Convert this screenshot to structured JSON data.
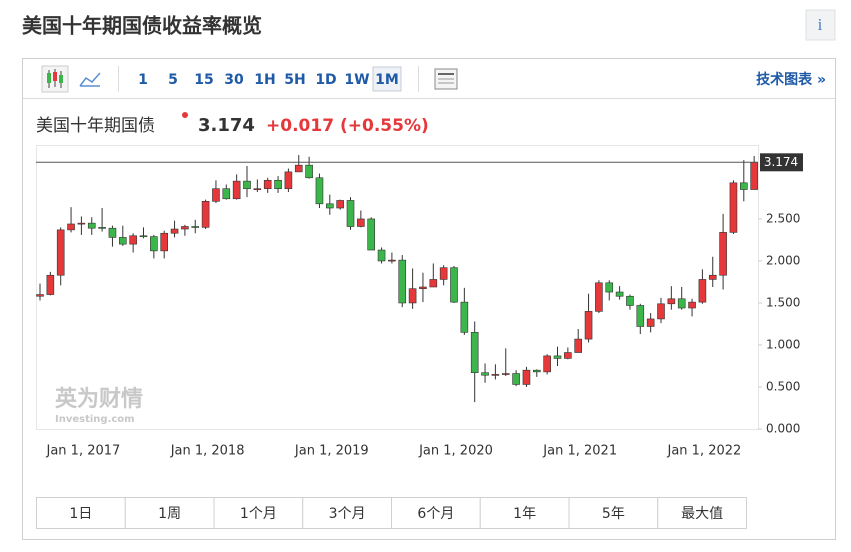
{
  "header": {
    "title": "美国十年期国债收益率概览",
    "info": "i"
  },
  "toolbar": {
    "intervals": [
      "1",
      "5",
      "15",
      "30",
      "1H",
      "5H",
      "1D",
      "1W",
      "1M"
    ],
    "selected": 8,
    "link": "技术图表 »"
  },
  "quote": {
    "name": "美国十年期国债",
    "change": "+0.017",
    "change_pct": "(+0.55%)"
  },
  "chart_data": {
    "type": "candlestick",
    "categories": [
      null,
      null,
      null,
      null,
      "Jan 1, 2017",
      null,
      null,
      null,
      null,
      null,
      null,
      null,
      null,
      null,
      null,
      null,
      "Jan 1, 2018",
      null,
      null,
      null,
      null,
      null,
      null,
      null,
      null,
      null,
      null,
      null,
      "Jan 1, 2019",
      null,
      null,
      null,
      null,
      null,
      null,
      null,
      null,
      null,
      null,
      null,
      "Jan 1, 2020",
      null,
      null,
      null,
      null,
      null,
      null,
      null,
      null,
      null,
      null,
      null,
      "Jan 1, 2021",
      null,
      null,
      null,
      null,
      null,
      null,
      null,
      null,
      null,
      null,
      null,
      "Jan 1, 2022",
      null,
      null,
      null,
      null,
      null
    ],
    "open": [
      1.58,
      1.6,
      1.83,
      2.37,
      2.44,
      2.45,
      2.4,
      2.39,
      2.28,
      2.2,
      2.3,
      2.29,
      2.12,
      2.33,
      2.38,
      2.41,
      2.4,
      2.71,
      2.86,
      2.74,
      2.95,
      2.86,
      2.86,
      2.96,
      2.86,
      3.06,
      3.14,
      2.99,
      2.68,
      2.63,
      2.72,
      2.41,
      2.5,
      2.13,
      2.0,
      2.01,
      1.5,
      1.67,
      1.69,
      1.78,
      1.92,
      1.51,
      1.15,
      0.67,
      0.64,
      0.65,
      0.66,
      0.53,
      0.7,
      0.68,
      0.87,
      0.84,
      0.91,
      1.07,
      1.4,
      1.74,
      1.63,
      1.58,
      1.47,
      1.22,
      1.31,
      1.49,
      1.55,
      1.44,
      1.51,
      1.78,
      1.83,
      2.34,
      2.93,
      2.85
    ],
    "high": [
      1.73,
      1.87,
      2.4,
      2.64,
      2.53,
      2.52,
      2.63,
      2.42,
      2.42,
      2.33,
      2.4,
      2.31,
      2.36,
      2.48,
      2.43,
      2.49,
      2.73,
      2.96,
      2.91,
      3.03,
      3.13,
      2.97,
      2.99,
      3.01,
      3.1,
      3.26,
      3.24,
      3.04,
      2.79,
      2.73,
      2.76,
      2.6,
      2.52,
      2.16,
      2.1,
      2.07,
      1.91,
      1.86,
      1.97,
      1.95,
      1.94,
      1.68,
      1.28,
      0.78,
      0.77,
      0.96,
      0.7,
      0.74,
      0.71,
      0.89,
      0.98,
      0.97,
      1.19,
      1.61,
      1.77,
      1.77,
      1.7,
      1.6,
      1.49,
      1.38,
      1.56,
      1.7,
      1.69,
      1.55,
      1.9,
      2.05,
      2.56,
      2.96,
      3.2,
      3.25
    ],
    "low": [
      1.53,
      1.59,
      1.71,
      2.34,
      2.31,
      2.31,
      2.35,
      2.17,
      2.18,
      2.1,
      2.27,
      2.03,
      2.03,
      2.28,
      2.3,
      2.33,
      2.38,
      2.69,
      2.73,
      2.73,
      2.76,
      2.82,
      2.81,
      2.81,
      2.82,
      3.06,
      2.98,
      2.63,
      2.55,
      2.61,
      2.37,
      2.4,
      2.13,
      1.97,
      1.97,
      1.45,
      1.43,
      1.51,
      1.69,
      1.71,
      1.5,
      1.12,
      0.32,
      0.55,
      0.59,
      0.63,
      0.51,
      0.5,
      0.62,
      0.65,
      0.75,
      0.83,
      0.91,
      1.03,
      1.38,
      1.53,
      1.54,
      1.42,
      1.13,
      1.15,
      1.26,
      1.42,
      1.42,
      1.34,
      1.49,
      1.69,
      1.66,
      2.32,
      2.71,
      2.85
    ],
    "close": [
      1.6,
      1.83,
      2.37,
      2.44,
      2.45,
      2.39,
      2.39,
      2.28,
      2.2,
      2.3,
      2.29,
      2.12,
      2.33,
      2.38,
      2.41,
      2.4,
      2.71,
      2.86,
      2.74,
      2.95,
      2.86,
      2.86,
      2.96,
      2.86,
      3.06,
      3.14,
      2.99,
      2.68,
      2.63,
      2.72,
      2.41,
      2.5,
      2.13,
      2.0,
      2.01,
      1.5,
      1.67,
      1.69,
      1.78,
      1.92,
      1.51,
      1.15,
      0.67,
      0.64,
      0.65,
      0.66,
      0.53,
      0.7,
      0.68,
      0.87,
      0.84,
      0.91,
      1.07,
      1.4,
      1.74,
      1.63,
      1.58,
      1.47,
      1.22,
      1.31,
      1.49,
      1.55,
      1.44,
      1.51,
      1.78,
      1.83,
      2.34,
      2.93,
      2.85,
      3.174
    ],
    "last_price": 3.174,
    "up_color": "#e5383b",
    "down_color": "#3cb64a",
    "ylim": [
      0,
      3.38
    ],
    "yticks": [
      {
        "value": 0,
        "label": "0.000"
      },
      {
        "value": 0.5,
        "label": "0.500"
      },
      {
        "value": 1,
        "label": "1.000"
      },
      {
        "value": 1.5,
        "label": "1.500"
      },
      {
        "value": 2,
        "label": "2.000"
      },
      {
        "value": 2.5,
        "label": "2.500"
      }
    ],
    "grid": false
  },
  "watermark": [
    "英为财情",
    "Investing.com"
  ],
  "ranges": [
    "1日",
    "1周",
    "1个月",
    "3个月",
    "6个月",
    "1年",
    "5年",
    "最大值"
  ]
}
